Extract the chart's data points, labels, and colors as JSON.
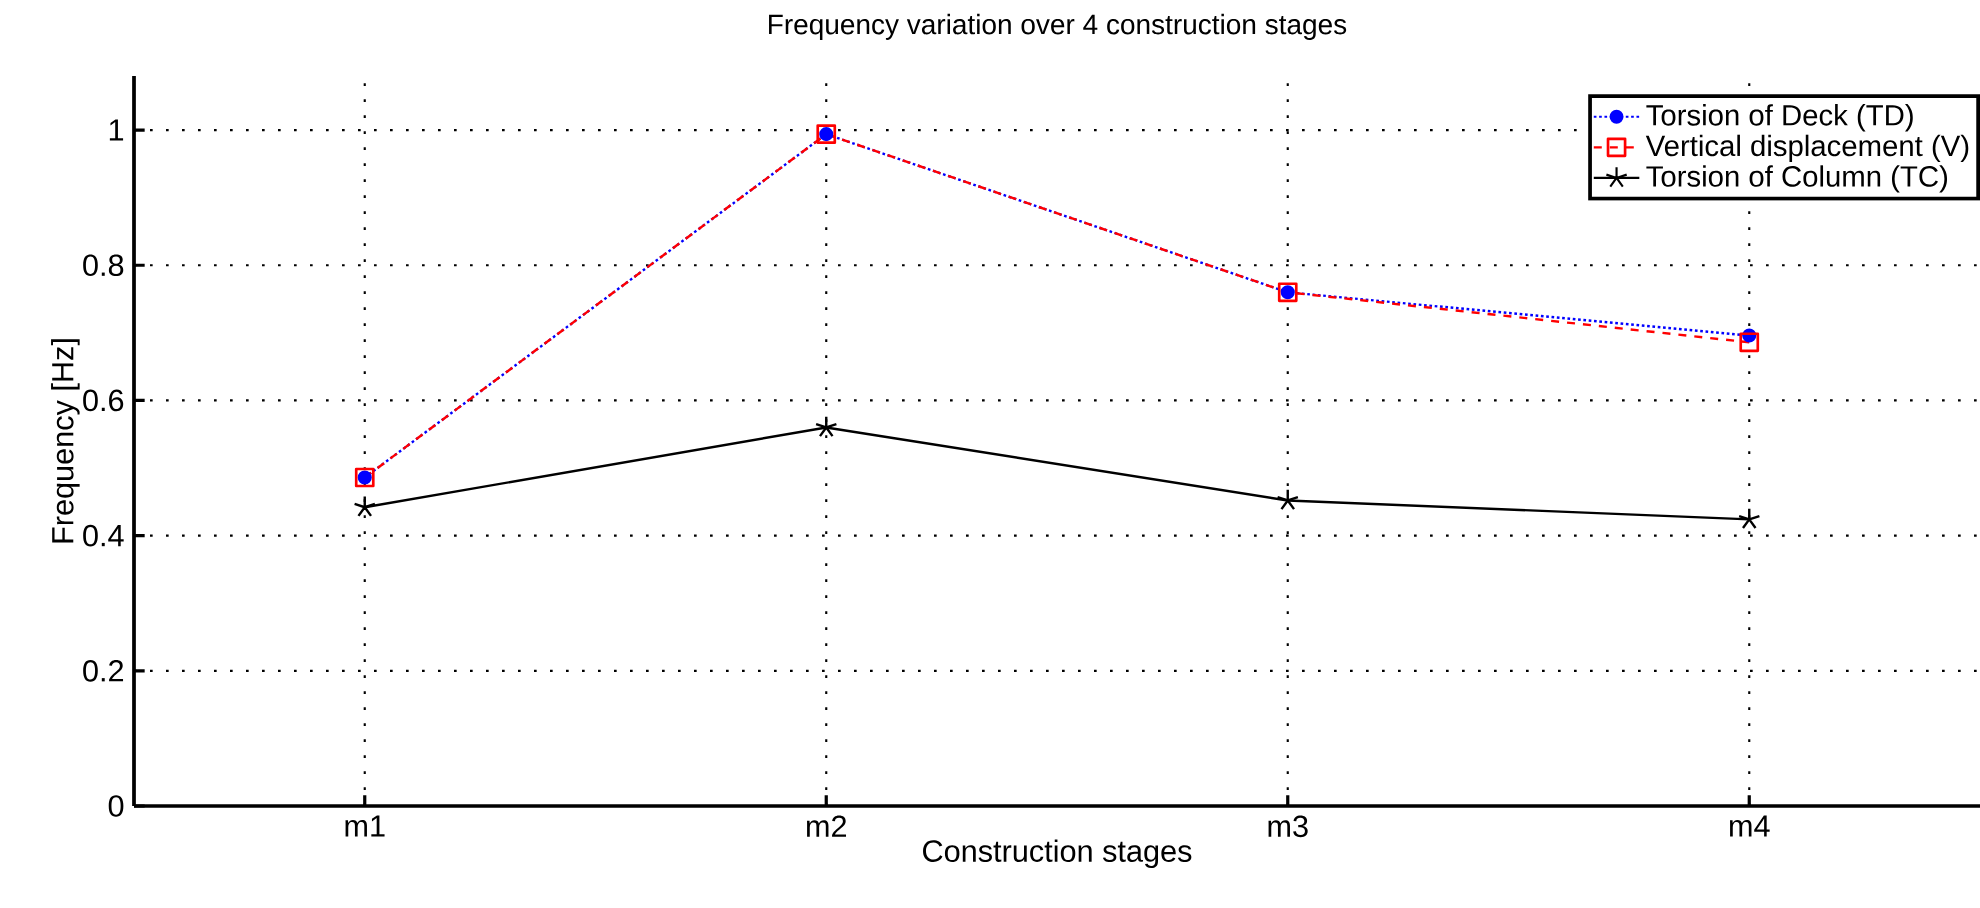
{
  "chart_data": {
    "type": "line",
    "title": "Frequency variation over 4 construction stages",
    "xlabel": "Construction stages",
    "ylabel": "Frequency [Hz]",
    "categories": [
      "m1",
      "m2",
      "m3",
      "m4"
    ],
    "series": [
      {
        "name": "Torsion of Deck (TD)",
        "color": "#0000ff",
        "marker": "circle",
        "line_style": "dotted",
        "values": [
          0.486,
          0.994,
          0.76,
          0.696
        ]
      },
      {
        "name": "Vertical displacement (V)",
        "color": "#ff0000",
        "marker": "square",
        "line_style": "dashed",
        "values": [
          0.486,
          0.994,
          0.76,
          0.686
        ]
      },
      {
        "name": "Torsion of Column (TC)",
        "color": "#000000",
        "marker": "cross",
        "line_style": "solid",
        "values": [
          0.442,
          0.56,
          0.452,
          0.424
        ]
      }
    ],
    "ylim": [
      0,
      1.08
    ],
    "yticks": [
      0,
      0.2,
      0.4,
      0.6,
      0.8,
      1
    ],
    "grid": true,
    "legend": "top right"
  }
}
